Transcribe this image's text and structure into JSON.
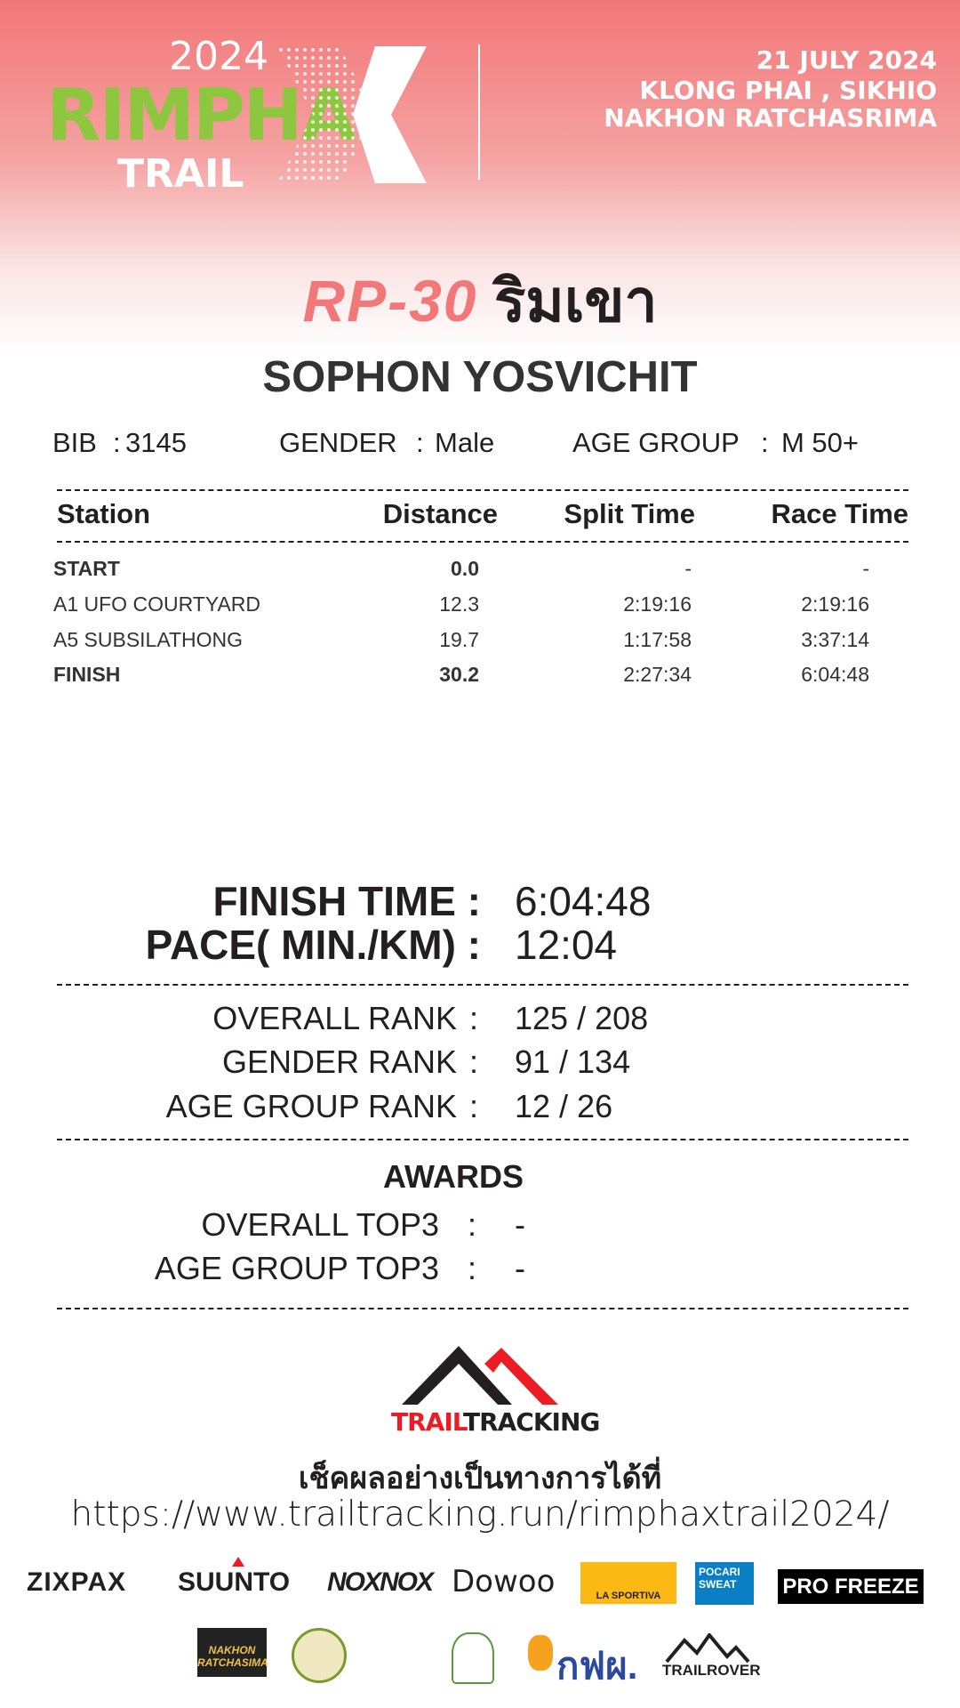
{
  "header": {
    "logo": {
      "year": "2024",
      "name": "RIMPHA",
      "sub": "TRAIL",
      "mark": "X"
    },
    "date": "21 JULY 2024",
    "location_line1": "KLONG PHAI , SIKHIO",
    "location_line2": "NAKHON RATCHASRIMA"
  },
  "race": {
    "code": "RP-30",
    "name_th": "ริมเขา"
  },
  "runner": {
    "name": "SOPHON YOSVICHIT",
    "bib_label": "BIB",
    "bib": "3145",
    "gender_label": "GENDER",
    "gender": "Male",
    "age_group_label": "AGE GROUP",
    "age_group": "M 50+",
    "sep": ":"
  },
  "table": {
    "headers": [
      "Station",
      "Distance",
      "Split Time",
      "Race Time"
    ],
    "rows": [
      {
        "station": "START",
        "distance": "0.0",
        "split": "-",
        "race": "-",
        "bold": true
      },
      {
        "station": "A1 UFO COURTYARD",
        "distance": "12.3",
        "split": "2:19:16",
        "race": "2:19:16",
        "bold": false
      },
      {
        "station": "A5 SUBSILATHONG",
        "distance": "19.7",
        "split": "1:17:58",
        "race": "3:37:14",
        "bold": false
      },
      {
        "station": "FINISH",
        "distance": "30.2",
        "split": "2:27:34",
        "race": "6:04:48",
        "bold": true
      }
    ]
  },
  "result": {
    "finish_label": "FINISH TIME :",
    "finish": "6:04:48",
    "pace_label": "PACE( MIN./KM) :",
    "pace": "12:04"
  },
  "ranks": [
    {
      "label": "OVERALL RANK",
      "sep": ":",
      "value": "125 / 208"
    },
    {
      "label": "GENDER RANK",
      "sep": ":",
      "value": "91 / 134"
    },
    {
      "label": "AGE GROUP RANK",
      "sep": ":",
      "value": "12 / 26"
    }
  ],
  "awards": {
    "title": "AWARDS",
    "items": [
      {
        "label": "OVERALL TOP3",
        "sep": ":",
        "value": "-"
      },
      {
        "label": "AGE GROUP TOP3",
        "sep": ":",
        "value": "-"
      }
    ]
  },
  "footer": {
    "brand_red": "TRAIL",
    "brand_black": "TRACKING",
    "check_th": "เช็คผลอย่างเป็นทางการได้ที่",
    "url": "https://www.trailtracking.run/rimphaxtrail2024/"
  },
  "sponsors": [
    "ZIXPAX",
    "SUUNTO",
    "NOXNOX",
    "Dowoo",
    "LA SPORTIVA",
    "POCARI SWEAT",
    "PRO FREEZE",
    "NAKHON RATCHASIMA",
    "กฟผ.",
    "TRAILROVER"
  ],
  "colors": {
    "accent": "#f27778",
    "green": "#8dc63f",
    "red": "#ed1c24",
    "text": "#231f20"
  }
}
